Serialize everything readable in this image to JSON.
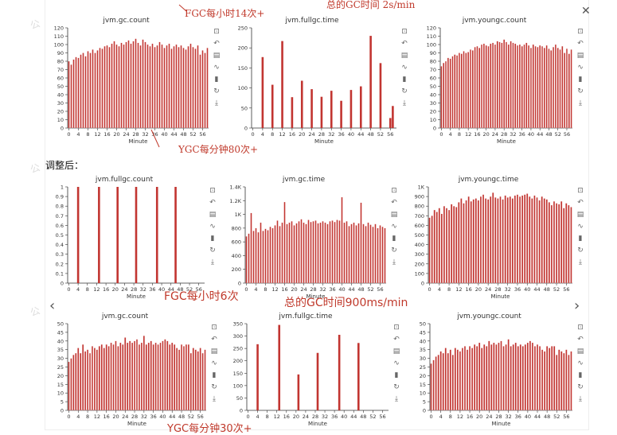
{
  "section_label": "调整后：",
  "watermark": "公",
  "nav": {
    "prev_icon": "‹",
    "next_icon": "›",
    "close_icon": "✕"
  },
  "annotations": {
    "top_fgc": "FGC每小时14次+",
    "top_gc_time": "总的GC时间 2s/min",
    "top_ygc": "YGC每分钟80次+",
    "mid_fgc": "FGC每小时6次",
    "mid_gc_time": "总的GC时间900ms/min",
    "bottom_ygc": "YGC每分钟30次+"
  },
  "toolbar_icons": [
    "zoom-icon",
    "zoom-reset-icon",
    "data-view-icon",
    "line-chart-icon",
    "bar-chart-icon",
    "restore-icon",
    "download-icon"
  ],
  "colors": {
    "bar": "#c23531",
    "bar_light": "#d87a80",
    "annotation": "#c0392b"
  },
  "chart_data": [
    {
      "id": "c1",
      "type": "bar",
      "title": "jvm.gc.count",
      "xlabel": "Minute",
      "ylim": [
        0,
        120
      ],
      "yticks": [
        "0",
        "10",
        "20",
        "30",
        "40",
        "50",
        "60",
        "70",
        "80",
        "90",
        "100",
        "110",
        "120"
      ],
      "xticks": [
        "0",
        "4",
        "8",
        "12",
        "16",
        "20",
        "24",
        "28",
        "32",
        "36",
        "40",
        "44",
        "48",
        "52",
        "56"
      ],
      "x": [
        0,
        1,
        2,
        3,
        4,
        5,
        6,
        7,
        8,
        9,
        10,
        11,
        12,
        13,
        14,
        15,
        16,
        17,
        18,
        19,
        20,
        21,
        22,
        23,
        24,
        25,
        26,
        27,
        28,
        29,
        30,
        31,
        32,
        33,
        34,
        35,
        36,
        37,
        38,
        39,
        40,
        41,
        42,
        43,
        44,
        45,
        46,
        47,
        48,
        49,
        50,
        51,
        52,
        53,
        54,
        55,
        56,
        57,
        58
      ],
      "values": [
        80,
        76,
        82,
        85,
        84,
        88,
        90,
        86,
        92,
        90,
        94,
        90,
        93,
        96,
        95,
        98,
        99,
        97,
        101,
        104,
        100,
        98,
        102,
        100,
        103,
        105,
        101,
        104,
        107,
        102,
        99,
        106,
        103,
        100,
        98,
        101,
        97,
        99,
        103,
        100,
        96,
        99,
        101,
        95,
        98,
        100,
        97,
        99,
        96,
        94,
        98,
        101,
        97,
        95,
        99,
        88,
        93,
        90,
        96
      ]
    },
    {
      "id": "c2",
      "type": "bar",
      "title": "jvm.fullgc.time",
      "xlabel": "Minute",
      "ylim": [
        0,
        250
      ],
      "yticks": [
        "0",
        "50",
        "100",
        "150",
        "200",
        "250"
      ],
      "xticks": [
        "0",
        "4",
        "8",
        "12",
        "16",
        "20",
        "24",
        "28",
        "32",
        "36",
        "40",
        "44",
        "48",
        "52",
        "56"
      ],
      "x": [
        4,
        8,
        12,
        16,
        20,
        24,
        28,
        32,
        36,
        40,
        44,
        48,
        52,
        56,
        57
      ],
      "values": [
        177,
        108,
        217,
        77,
        118,
        97,
        78,
        93,
        68,
        95,
        104,
        230,
        162,
        25,
        55
      ]
    },
    {
      "id": "c3",
      "type": "bar",
      "title": "jvm.youngc.count",
      "xlabel": "Minute",
      "ylim": [
        0,
        120
      ],
      "yticks": [
        "0",
        "10",
        "20",
        "30",
        "40",
        "50",
        "60",
        "70",
        "80",
        "90",
        "100",
        "110",
        "120"
      ],
      "xticks": [
        "0",
        "4",
        "8",
        "12",
        "16",
        "20",
        "24",
        "28",
        "32",
        "36",
        "40",
        "44",
        "48",
        "52",
        "56"
      ],
      "x": [
        0,
        1,
        2,
        3,
        4,
        5,
        6,
        7,
        8,
        9,
        10,
        11,
        12,
        13,
        14,
        15,
        16,
        17,
        18,
        19,
        20,
        21,
        22,
        23,
        24,
        25,
        26,
        27,
        28,
        29,
        30,
        31,
        32,
        33,
        34,
        35,
        36,
        37,
        38,
        39,
        40,
        41,
        42,
        43,
        44,
        45,
        46,
        47,
        48,
        49,
        50,
        51,
        52,
        53,
        54,
        55,
        56,
        57,
        58
      ],
      "values": [
        74,
        78,
        80,
        84,
        83,
        86,
        88,
        87,
        90,
        89,
        92,
        90,
        91,
        94,
        93,
        97,
        98,
        96,
        100,
        101,
        99,
        98,
        101,
        102,
        100,
        104,
        103,
        102,
        106,
        103,
        100,
        104,
        102,
        101,
        99,
        100,
        98,
        100,
        102,
        99,
        96,
        100,
        98,
        97,
        99,
        98,
        96,
        99,
        95,
        93,
        97,
        100,
        96,
        94,
        98,
        90,
        95,
        89,
        94
      ]
    },
    {
      "id": "c4",
      "type": "bar",
      "title": "jvm.fullgc.count",
      "xlabel": "Minute",
      "ylim": [
        0,
        1
      ],
      "yticks": [
        "0",
        "0.1",
        "0.2",
        "0.3",
        "0.4",
        "0.5",
        "0.6",
        "0.7",
        "0.8",
        "0.9",
        "1"
      ],
      "xticks": [
        "0",
        "4",
        "8",
        "12",
        "16",
        "20",
        "24",
        "28",
        "32",
        "36",
        "40",
        "44",
        "48",
        "52",
        "56"
      ],
      "x": [
        4,
        13,
        21,
        29,
        38,
        46
      ],
      "values": [
        1,
        1,
        1,
        1,
        1,
        1
      ]
    },
    {
      "id": "c5",
      "type": "bar",
      "title": "jvm.gc.time",
      "xlabel": "Minute",
      "ylim": [
        0,
        1400
      ],
      "yticks": [
        "0",
        "200",
        "400",
        "600",
        "800",
        "1K",
        "1.2K",
        "1.4K"
      ],
      "xticks": [
        "0",
        "4",
        "8",
        "12",
        "16",
        "20",
        "24",
        "28",
        "32",
        "36",
        "40",
        "44",
        "48",
        "52",
        "56"
      ],
      "x": [
        0,
        1,
        2,
        3,
        4,
        5,
        6,
        7,
        8,
        9,
        10,
        11,
        12,
        13,
        14,
        15,
        16,
        17,
        18,
        19,
        20,
        21,
        22,
        23,
        24,
        25,
        26,
        27,
        28,
        29,
        30,
        31,
        32,
        33,
        34,
        35,
        36,
        37,
        38,
        39,
        40,
        41,
        42,
        43,
        44,
        45,
        46,
        47,
        48,
        49,
        50,
        51,
        52,
        53,
        54,
        55,
        56,
        57,
        58
      ],
      "values": [
        680,
        720,
        1020,
        760,
        800,
        740,
        880,
        760,
        790,
        770,
        820,
        800,
        840,
        910,
        830,
        880,
        1180,
        860,
        880,
        900,
        840,
        870,
        900,
        930,
        880,
        860,
        920,
        890,
        900,
        910,
        870,
        880,
        900,
        880,
        860,
        900,
        910,
        890,
        920,
        910,
        1250,
        880,
        900,
        830,
        860,
        880,
        840,
        870,
        1170,
        860,
        830,
        880,
        850,
        820,
        860,
        800,
        840,
        820,
        800
      ]
    },
    {
      "id": "c6",
      "type": "bar",
      "title": "jvm.youngc.time",
      "xlabel": "Minute",
      "ylim": [
        0,
        1000
      ],
      "yticks": [
        "0",
        "100",
        "200",
        "300",
        "400",
        "500",
        "600",
        "700",
        "800",
        "900",
        "1K"
      ],
      "xticks": [
        "0",
        "4",
        "8",
        "12",
        "16",
        "20",
        "24",
        "28",
        "32",
        "36",
        "40",
        "44",
        "48",
        "52",
        "56"
      ],
      "x": [
        0,
        1,
        2,
        3,
        4,
        5,
        6,
        7,
        8,
        9,
        10,
        11,
        12,
        13,
        14,
        15,
        16,
        17,
        18,
        19,
        20,
        21,
        22,
        23,
        24,
        25,
        26,
        27,
        28,
        29,
        30,
        31,
        32,
        33,
        34,
        35,
        36,
        37,
        38,
        39,
        40,
        41,
        42,
        43,
        44,
        45,
        46,
        47,
        48,
        49,
        50,
        51,
        52,
        53,
        54,
        55,
        56,
        57,
        58
      ],
      "values": [
        680,
        700,
        760,
        740,
        780,
        720,
        800,
        780,
        760,
        820,
        800,
        790,
        840,
        880,
        830,
        860,
        900,
        850,
        870,
        880,
        860,
        900,
        920,
        880,
        870,
        900,
        940,
        890,
        880,
        900,
        870,
        910,
        890,
        900,
        880,
        910,
        920,
        900,
        910,
        920,
        930,
        900,
        880,
        910,
        890,
        860,
        900,
        880,
        870,
        840,
        810,
        850,
        830,
        820,
        850,
        780,
        830,
        810,
        790
      ]
    },
    {
      "id": "c7",
      "type": "bar",
      "title": "jvm.gc.count",
      "xlabel": "Minute",
      "ylim": [
        0,
        50
      ],
      "yticks": [
        "0",
        "5",
        "10",
        "15",
        "20",
        "25",
        "30",
        "35",
        "40",
        "45",
        "50"
      ],
      "xticks": [
        "0",
        "4",
        "8",
        "12",
        "16",
        "20",
        "24",
        "28",
        "32",
        "36",
        "40",
        "44",
        "48",
        "52",
        "56"
      ],
      "x": [
        0,
        1,
        2,
        3,
        4,
        5,
        6,
        7,
        8,
        9,
        10,
        11,
        12,
        13,
        14,
        15,
        16,
        17,
        18,
        19,
        20,
        21,
        22,
        23,
        24,
        25,
        26,
        27,
        28,
        29,
        30,
        31,
        32,
        33,
        34,
        35,
        36,
        37,
        38,
        39,
        40,
        41,
        42,
        43,
        44,
        45,
        46,
        47,
        48,
        49,
        50,
        51,
        52,
        53,
        54,
        55,
        56,
        57,
        58
      ],
      "values": [
        28,
        30,
        32,
        33,
        36,
        33,
        38,
        34,
        35,
        33,
        37,
        36,
        35,
        37,
        38,
        36,
        38,
        37,
        39,
        38,
        40,
        37,
        39,
        38,
        42,
        39,
        40,
        39,
        40,
        41,
        38,
        39,
        43,
        38,
        39,
        40,
        38,
        39,
        38,
        39,
        40,
        41,
        40,
        38,
        39,
        38,
        36,
        35,
        38,
        37,
        38,
        38,
        33,
        36,
        35,
        34,
        36,
        33,
        35
      ]
    },
    {
      "id": "c8",
      "type": "bar",
      "title": "jvm.fullgc.time",
      "xlabel": "Minute",
      "ylim": [
        0,
        350
      ],
      "yticks": [
        "0",
        "50",
        "100",
        "150",
        "200",
        "250",
        "300",
        "350"
      ],
      "xticks": [
        "0",
        "4",
        "8",
        "12",
        "16",
        "20",
        "24",
        "28",
        "32",
        "36",
        "40",
        "44",
        "48",
        "52",
        "56"
      ],
      "x": [
        4,
        13,
        21,
        29,
        38,
        46
      ],
      "values": [
        267,
        345,
        145,
        232,
        305,
        272
      ]
    },
    {
      "id": "c9",
      "type": "bar",
      "title": "jvm.youngc.count",
      "xlabel": "Minute",
      "ylim": [
        0,
        50
      ],
      "yticks": [
        "0",
        "5",
        "10",
        "15",
        "20",
        "25",
        "30",
        "35",
        "40",
        "45",
        "50"
      ],
      "xticks": [
        "0",
        "4",
        "8",
        "12",
        "16",
        "20",
        "24",
        "28",
        "32",
        "36",
        "40",
        "44",
        "48",
        "52",
        "56"
      ],
      "x": [
        0,
        1,
        2,
        3,
        4,
        5,
        6,
        7,
        8,
        9,
        10,
        11,
        12,
        13,
        14,
        15,
        16,
        17,
        18,
        19,
        20,
        21,
        22,
        23,
        24,
        25,
        26,
        27,
        28,
        29,
        30,
        31,
        32,
        33,
        34,
        35,
        36,
        37,
        38,
        39,
        40,
        41,
        42,
        43,
        44,
        45,
        46,
        47,
        48,
        49,
        50,
        51,
        52,
        53,
        54,
        55,
        56,
        57,
        58
      ],
      "values": [
        27,
        29,
        31,
        32,
        34,
        33,
        36,
        33,
        35,
        32,
        36,
        35,
        34,
        36,
        37,
        35,
        37,
        36,
        38,
        37,
        39,
        36,
        38,
        37,
        40,
        38,
        39,
        38,
        39,
        40,
        37,
        38,
        41,
        37,
        38,
        39,
        37,
        38,
        37,
        38,
        39,
        40,
        39,
        37,
        38,
        37,
        35,
        34,
        37,
        36,
        37,
        37,
        32,
        35,
        34,
        33,
        35,
        32,
        34
      ]
    }
  ]
}
